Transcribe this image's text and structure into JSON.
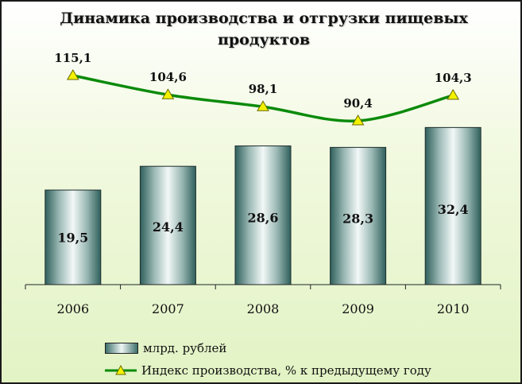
{
  "chart_data": {
    "type": "bar",
    "title": "Динамика производства и отгрузки пищевых продуктов",
    "categories": [
      "2006",
      "2007",
      "2008",
      "2009",
      "2010"
    ],
    "series": [
      {
        "name": "млрд. рублей",
        "kind": "bar",
        "values": [
          19.5,
          24.4,
          28.6,
          28.3,
          32.4
        ],
        "labels": [
          "19,5",
          "24,4",
          "28,6",
          "28,3",
          "32,4"
        ],
        "color": "#3d6f6b"
      },
      {
        "name": "Индекс производства, % к предыдущему году",
        "kind": "line",
        "values": [
          115.1,
          104.6,
          98.1,
          90.4,
          104.3
        ],
        "labels": [
          "115,1",
          "104,6",
          "98,1",
          "90,4",
          "104,3"
        ],
        "color": "#0a8a0a",
        "marker_color": "#f2f200"
      }
    ],
    "grid": false,
    "legend_position": "bottom"
  }
}
